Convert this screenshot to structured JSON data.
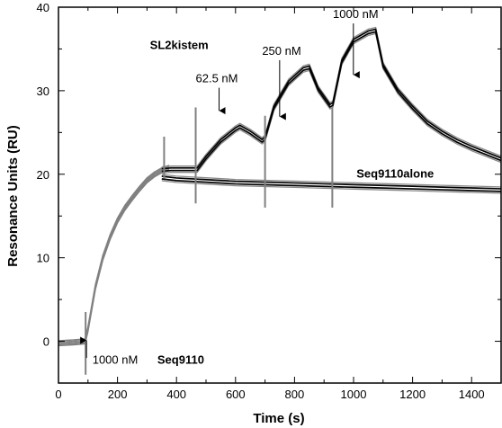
{
  "chart_data": {
    "type": "line",
    "xlabel": "Time (s)",
    "ylabel": "Resonance Units (RU)",
    "xlim": [
      0,
      1500
    ],
    "ylim": [
      -5,
      40
    ],
    "xticks": [
      0,
      200,
      400,
      600,
      800,
      1000,
      1200,
      1400
    ],
    "yticks": [
      0,
      10,
      20,
      30,
      40
    ],
    "grid": false,
    "series": [
      {
        "name": "Seq9110alone",
        "color": "#000000",
        "x": [
          350,
          400,
          500,
          600,
          700,
          800,
          900,
          1000,
          1100,
          1200,
          1300,
          1400,
          1500
        ],
        "y": [
          19.6,
          19.4,
          19.2,
          19.0,
          18.9,
          18.8,
          18.7,
          18.6,
          18.5,
          18.4,
          18.3,
          18.2,
          18.1
        ]
      },
      {
        "name": "SL2kistem",
        "color": "#000000",
        "x": [
          350,
          380,
          420,
          460,
          470,
          500,
          550,
          600,
          615,
          650,
          690,
          700,
          730,
          780,
          830,
          850,
          880,
          920,
          930,
          960,
          1000,
          1050,
          1075,
          1100,
          1150,
          1200,
          1250,
          1300,
          1350,
          1400,
          1450,
          1500
        ],
        "y": [
          20.5,
          20.6,
          20.6,
          20.6,
          20.6,
          22.0,
          24.0,
          25.4,
          25.7,
          25.0,
          24.0,
          24.3,
          28.0,
          31.0,
          32.6,
          32.8,
          30.2,
          28.2,
          28.4,
          33.5,
          36.0,
          37.0,
          37.2,
          33.0,
          30.0,
          28.0,
          26.2,
          25.0,
          24.0,
          23.2,
          22.5,
          21.8
        ]
      }
    ],
    "association_curve": {
      "color": "#808080",
      "x": [
        0,
        50,
        85,
        90,
        100,
        110,
        125,
        150,
        175,
        200,
        225,
        250,
        275,
        300,
        325,
        350,
        375
      ],
      "y": [
        -0.2,
        -0.1,
        0.0,
        0.0,
        1.5,
        3.5,
        6.5,
        10.0,
        12.5,
        14.5,
        16.0,
        17.2,
        18.3,
        19.3,
        20.0,
        20.5,
        20.8
      ]
    },
    "injection_spikes": [
      {
        "x": 92,
        "low": -4,
        "high": 3.5
      },
      {
        "x": 358,
        "low": 19.5,
        "high": 24.5
      },
      {
        "x": 465,
        "low": 16.5,
        "high": 28
      },
      {
        "x": 700,
        "low": 16,
        "high": 27
      },
      {
        "x": 928,
        "low": 16,
        "high": 28
      }
    ],
    "annotations": [
      {
        "text": "SL2kistem",
        "bold": true,
        "x": 310,
        "y": 35.0
      },
      {
        "text": "62.5 nM",
        "bold": false,
        "x": 465,
        "y": 31.0,
        "arrow_to": 27.5
      },
      {
        "text": "250 nM",
        "bold": false,
        "x": 690,
        "y": 34.3,
        "arrow_to": 26.8
      },
      {
        "text": "1000 nM",
        "bold": false,
        "x": 930,
        "y": 38.7,
        "arrow_to": 31.8
      },
      {
        "text": "Seq9110alone",
        "bold": true,
        "x": 1010,
        "y": 19.6
      },
      {
        "text": "1000 nM",
        "bold": false,
        "x": 115,
        "y": -2.7,
        "arrow_from_y": -2.0,
        "arrow_x": 95,
        "arrow_to": 0.0
      },
      {
        "text": "Seq9110",
        "bold": true,
        "x": 335,
        "y": -2.7
      }
    ]
  }
}
